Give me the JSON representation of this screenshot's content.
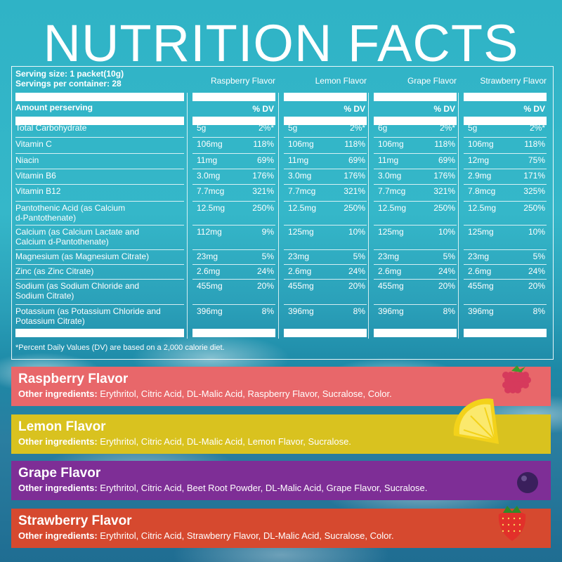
{
  "title": "NUTRITION FACTS",
  "serving_size": "Serving size: 1 packet(10g)",
  "servings_per_container": "Servings per container: 28",
  "amount_label": "Amount perserving",
  "dv_label": "% DV",
  "flavors": [
    "Raspberry Flavor",
    "Lemon Flavor",
    "Grape Flavor",
    "Strawberry Flavor"
  ],
  "rows": [
    {
      "label": "Total Carbohydrate",
      "cells": [
        [
          "5g",
          "2%*"
        ],
        [
          "5g",
          "2%*"
        ],
        [
          "6g",
          "2%*"
        ],
        [
          "5g",
          "2%*"
        ]
      ]
    },
    {
      "label": "Vitamin  C",
      "cells": [
        [
          "106mg",
          "118%"
        ],
        [
          "106mg",
          "118%"
        ],
        [
          "106mg",
          "118%"
        ],
        [
          "106mg",
          "118%"
        ]
      ]
    },
    {
      "label": "Niacin",
      "cells": [
        [
          "11mg",
          "69%"
        ],
        [
          "11mg",
          "69%"
        ],
        [
          "11mg",
          "69%"
        ],
        [
          "12mg",
          "75%"
        ]
      ]
    },
    {
      "label": "Vitamin B6",
      "cells": [
        [
          "3.0mg",
          "176%"
        ],
        [
          "3.0mg",
          "176%"
        ],
        [
          "3.0mg",
          "176%"
        ],
        [
          "2.9mg",
          "171%"
        ]
      ]
    },
    {
      "label": "Vitamin B12",
      "cells": [
        [
          "7.7mcg",
          "321%"
        ],
        [
          "7.7mcg",
          "321%"
        ],
        [
          "7.7mcg",
          "321%"
        ],
        [
          "7.8mcg",
          "325%"
        ]
      ]
    },
    {
      "label": "Pantothenic Acid (as Calcium\nd-Pantothenate)",
      "cells": [
        [
          "12.5mg",
          "250%"
        ],
        [
          "12.5mg",
          "250%"
        ],
        [
          "12.5mg",
          "250%"
        ],
        [
          "12.5mg",
          "250%"
        ]
      ]
    },
    {
      "label": "Calcium (as Calcium Lactate and\nCalcium d-Pantothenate)",
      "cells": [
        [
          "112mg",
          "9%"
        ],
        [
          "125mg",
          "10%"
        ],
        [
          "125mg",
          "10%"
        ],
        [
          "125mg",
          "10%"
        ]
      ]
    },
    {
      "label": "Magnesium (as Magnesium Citrate)",
      "cells": [
        [
          "23mg",
          "5%"
        ],
        [
          "23mg",
          "5%"
        ],
        [
          "23mg",
          "5%"
        ],
        [
          "23mg",
          "5%"
        ]
      ]
    },
    {
      "label": "Zinc (as Zinc Citrate)",
      "cells": [
        [
          "2.6mg",
          "24%"
        ],
        [
          "2.6mg",
          "24%"
        ],
        [
          "2.6mg",
          "24%"
        ],
        [
          "2.6mg",
          "24%"
        ]
      ]
    },
    {
      "label": "Sodium (as Sodium Chloride and\nSodium Citrate)",
      "cells": [
        [
          "455mg",
          "20%"
        ],
        [
          "455mg",
          "20%"
        ],
        [
          "455mg",
          "20%"
        ],
        [
          "455mg",
          "20%"
        ]
      ]
    },
    {
      "label": "Potassium (as Potassium Chloride and\nPotassium Citrate)",
      "cells": [
        [
          "396mg",
          "8%"
        ],
        [
          "396mg",
          "8%"
        ],
        [
          "396mg",
          "8%"
        ],
        [
          "396mg",
          "8%"
        ]
      ]
    }
  ],
  "footnote": "*Percent Daily Values (DV) are based on a 2,000 calorie diet.",
  "bands": [
    {
      "name": "Raspberry Flavor",
      "ing_label": "Other ingredients:",
      "ing": " Erythritol, Citric Acid, DL-Malic Acid, Raspberry Flavor, Sucralose, Color.",
      "color": "#e8676a",
      "fruit": "raspberry-icon"
    },
    {
      "name": "Lemon Flavor",
      "ing_label": "Other ingredients:",
      "ing": " Erythritol, Citric Acid, DL-Malic Acid, Lemon Flavor, Sucralose.",
      "color": "#d9c21f",
      "fruit": "lemon-icon"
    },
    {
      "name": "Grape Flavor",
      "ing_label": "Other ingredients:",
      "ing": " Erythritol, Citric Acid, Beet Root Powder, DL-Malic Acid, Grape Flavor, Sucralose.",
      "color": "#7e2e96",
      "fruit": "grape-icon"
    },
    {
      "name": "Strawberry Flavor",
      "ing_label": "Other ingredients:",
      "ing": " Erythritol, Citric Acid, Strawberry Flavor, DL-Malic Acid, Sucralose, Color.",
      "color": "#d6492f",
      "fruit": "strawberry-icon"
    }
  ]
}
